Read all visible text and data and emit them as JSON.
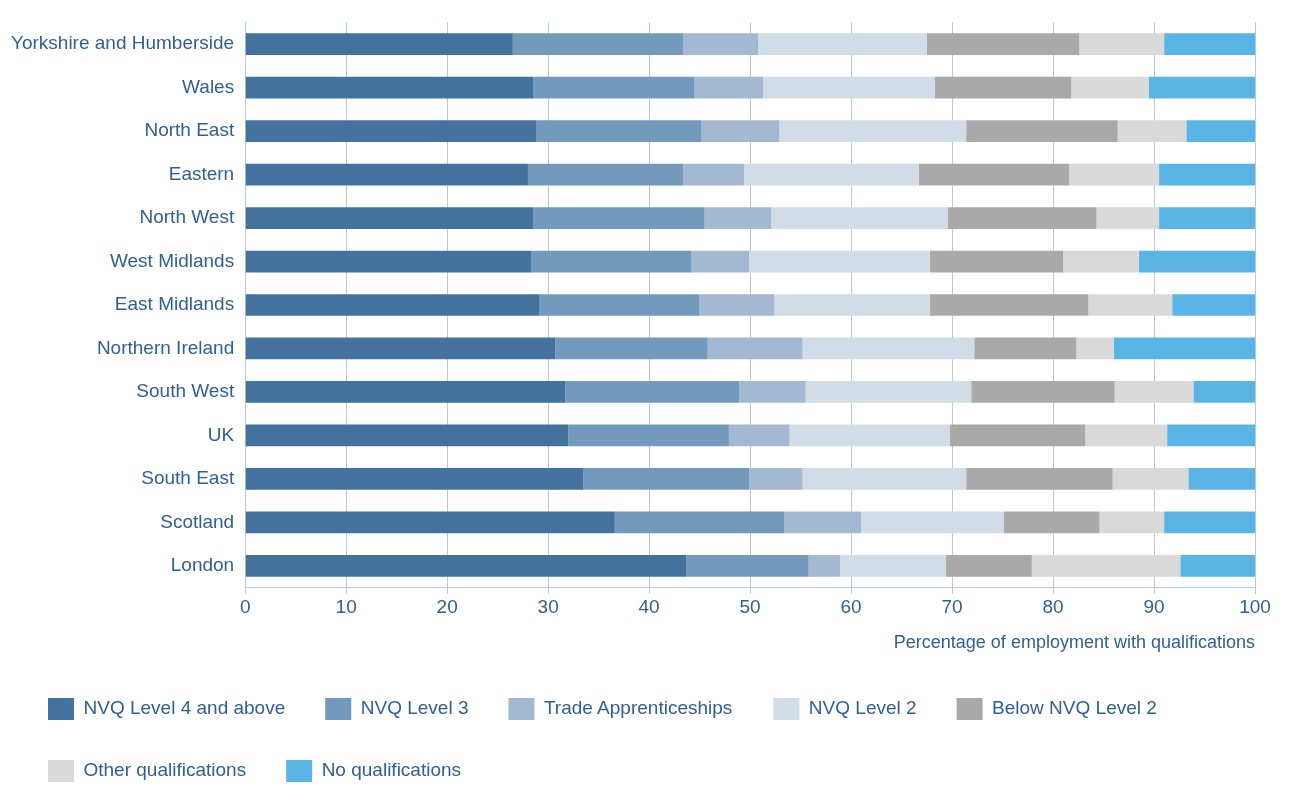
{
  "chart_data": {
    "type": "bar",
    "orientation": "horizontal",
    "stacked": true,
    "xlabel": "Percentage of employment with qualifications",
    "categories": [
      "Yorkshire and Humberside",
      "Wales",
      "North East",
      "Eastern",
      "North West",
      "West Midlands",
      "East Midlands",
      "Northern Ireland",
      "South West",
      "UK",
      "South East",
      "Scotland",
      "London"
    ],
    "series": [
      {
        "name": "NVQ Level 4 and above",
        "color": "#44729f",
        "values": [
          26.5,
          28.5,
          28.8,
          28.0,
          28.5,
          28.3,
          29.1,
          30.7,
          31.7,
          32.0,
          33.5,
          36.6,
          43.7
        ]
      },
      {
        "name": "NVQ Level 3",
        "color": "#7399bc",
        "values": [
          16.9,
          16.0,
          16.4,
          15.4,
          17.0,
          15.9,
          15.9,
          15.1,
          17.2,
          15.9,
          16.4,
          16.8,
          12.1
        ]
      },
      {
        "name": "Trade Apprenticeships",
        "color": "#a3b9d1",
        "values": [
          7.4,
          6.8,
          7.7,
          6.0,
          6.6,
          5.7,
          7.4,
          9.4,
          6.6,
          6.0,
          5.3,
          7.6,
          3.1
        ]
      },
      {
        "name": "NVQ Level 2",
        "color": "#d1dce6",
        "values": [
          16.7,
          17.0,
          18.5,
          17.3,
          17.5,
          17.9,
          15.4,
          17.0,
          16.4,
          15.9,
          16.2,
          14.1,
          10.5
        ]
      },
      {
        "name": "Below NVQ Level 2",
        "color": "#a9a9a9",
        "values": [
          15.1,
          13.5,
          15.0,
          14.9,
          14.7,
          13.2,
          15.7,
          10.1,
          14.2,
          13.4,
          14.5,
          9.5,
          8.5
        ]
      },
      {
        "name": "Other qualifications",
        "color": "#d9d9d9",
        "values": [
          8.4,
          7.7,
          6.8,
          8.9,
          6.2,
          7.5,
          8.3,
          3.7,
          7.8,
          8.1,
          7.5,
          6.4,
          14.7
        ]
      },
      {
        "name": "No qualifications",
        "color": "#5ab4e5",
        "values": [
          9.0,
          10.5,
          6.8,
          9.5,
          9.5,
          11.5,
          8.2,
          14.0,
          6.1,
          8.7,
          6.6,
          9.0,
          7.4
        ]
      }
    ],
    "xlim": [
      0,
      100
    ],
    "xticks": [
      0,
      10,
      20,
      30,
      40,
      50,
      60,
      70,
      80,
      90,
      100
    ],
    "grid": "x",
    "legend": "bottom"
  }
}
